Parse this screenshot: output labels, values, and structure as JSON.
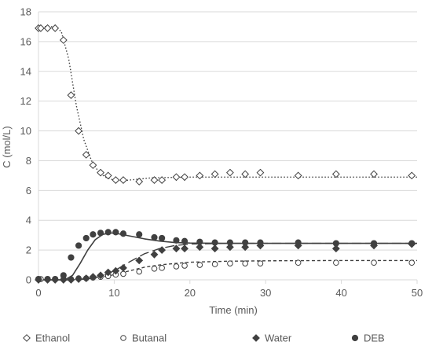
{
  "chart_data": {
    "type": "scatter",
    "xlabel": "Time (min)",
    "ylabel": "C (mol/L)",
    "xlim": [
      0,
      50
    ],
    "ylim": [
      0,
      18
    ],
    "x_ticks": [
      0,
      10,
      20,
      30,
      40,
      50
    ],
    "y_ticks": [
      0,
      2,
      4,
      6,
      8,
      10,
      12,
      14,
      16,
      18
    ],
    "grid": "horizontal",
    "legend_position": "bottom",
    "axis_color": "#d9d9d9",
    "text_color": "#595959",
    "series": [
      {
        "name": "Ethanol",
        "marker": "diamond-open",
        "color": "#404040",
        "points": [
          [
            0,
            16.9
          ],
          [
            0.3,
            16.9
          ],
          [
            1.2,
            16.9
          ],
          [
            2.2,
            16.9
          ],
          [
            3.3,
            16.1
          ],
          [
            4.3,
            12.4
          ],
          [
            5.3,
            10.0
          ],
          [
            6.3,
            8.4
          ],
          [
            7.2,
            7.7
          ],
          [
            8.2,
            7.2
          ],
          [
            9.2,
            7.0
          ],
          [
            10.2,
            6.7
          ],
          [
            11.2,
            6.7
          ],
          [
            13.3,
            6.6
          ],
          [
            15.3,
            6.7
          ],
          [
            16.3,
            6.7
          ],
          [
            18.2,
            6.9
          ],
          [
            19.3,
            6.9
          ],
          [
            21.3,
            7.0
          ],
          [
            23.3,
            7.1
          ],
          [
            25.3,
            7.2
          ],
          [
            27.3,
            7.1
          ],
          [
            29.3,
            7.2
          ],
          [
            34.3,
            7.0
          ],
          [
            39.3,
            7.1
          ],
          [
            44.3,
            7.1
          ],
          [
            49.3,
            7.0
          ]
        ]
      },
      {
        "name": "Butanal",
        "marker": "circle-open",
        "color": "#404040",
        "points": [
          [
            0,
            0.05
          ],
          [
            0.3,
            0.05
          ],
          [
            1.2,
            0.05
          ],
          [
            2.2,
            0.05
          ],
          [
            3.3,
            0.05
          ],
          [
            4.3,
            0.05
          ],
          [
            5.3,
            0.1
          ],
          [
            6.3,
            0.1
          ],
          [
            7.2,
            0.15
          ],
          [
            8.2,
            0.2
          ],
          [
            9.2,
            0.25
          ],
          [
            10.2,
            0.35
          ],
          [
            11.2,
            0.4
          ],
          [
            13.3,
            0.55
          ],
          [
            15.3,
            0.75
          ],
          [
            16.3,
            0.8
          ],
          [
            18.2,
            0.9
          ],
          [
            19.3,
            0.95
          ],
          [
            21.3,
            1.0
          ],
          [
            23.3,
            1.05
          ],
          [
            25.3,
            1.1
          ],
          [
            27.3,
            1.1
          ],
          [
            29.3,
            1.1
          ],
          [
            34.3,
            1.15
          ],
          [
            39.3,
            1.15
          ],
          [
            44.3,
            1.15
          ],
          [
            49.3,
            1.15
          ]
        ]
      },
      {
        "name": "Water",
        "marker": "diamond-filled",
        "color": "#404040",
        "points": [
          [
            0,
            0.0
          ],
          [
            1.2,
            0.0
          ],
          [
            2.2,
            0.0
          ],
          [
            3.3,
            0.0
          ],
          [
            4.3,
            0.0
          ],
          [
            5.3,
            0.05
          ],
          [
            6.3,
            0.1
          ],
          [
            7.2,
            0.2
          ],
          [
            8.2,
            0.3
          ],
          [
            9.2,
            0.5
          ],
          [
            10.2,
            0.6
          ],
          [
            11.2,
            0.8
          ],
          [
            13.3,
            1.3
          ],
          [
            15.3,
            1.7
          ],
          [
            16.3,
            2.0
          ],
          [
            18.2,
            2.1
          ],
          [
            19.3,
            2.1
          ],
          [
            21.3,
            2.2
          ],
          [
            23.3,
            2.1
          ],
          [
            25.3,
            2.2
          ],
          [
            27.3,
            2.2
          ],
          [
            29.3,
            2.3
          ],
          [
            34.3,
            2.3
          ],
          [
            39.3,
            2.1
          ],
          [
            44.3,
            2.3
          ],
          [
            49.3,
            2.4
          ]
        ]
      },
      {
        "name": "DEB",
        "marker": "circle-filled",
        "color": "#404040",
        "points": [
          [
            0,
            0.05
          ],
          [
            1.2,
            0.05
          ],
          [
            2.2,
            0.05
          ],
          [
            3.3,
            0.3
          ],
          [
            4.3,
            1.5
          ],
          [
            5.3,
            2.3
          ],
          [
            6.3,
            2.8
          ],
          [
            7.2,
            3.05
          ],
          [
            8.2,
            3.15
          ],
          [
            9.2,
            3.2
          ],
          [
            10.2,
            3.2
          ],
          [
            11.2,
            3.1
          ],
          [
            13.3,
            3.05
          ],
          [
            15.3,
            2.85
          ],
          [
            16.3,
            2.8
          ],
          [
            18.2,
            2.65
          ],
          [
            19.3,
            2.6
          ],
          [
            21.3,
            2.55
          ],
          [
            23.3,
            2.5
          ],
          [
            25.3,
            2.5
          ],
          [
            27.3,
            2.5
          ],
          [
            29.3,
            2.5
          ],
          [
            34.3,
            2.5
          ],
          [
            39.3,
            2.45
          ],
          [
            44.3,
            2.45
          ],
          [
            49.3,
            2.45
          ]
        ]
      }
    ],
    "fit_lines": [
      {
        "dash": "dotted",
        "points": [
          [
            0,
            17.0
          ],
          [
            2,
            17.0
          ],
          [
            3,
            16.7
          ],
          [
            4,
            14.8
          ],
          [
            5,
            11.7
          ],
          [
            6,
            9.4
          ],
          [
            7,
            8.0
          ],
          [
            8,
            7.2
          ],
          [
            9,
            6.85
          ],
          [
            10,
            6.7
          ],
          [
            11,
            6.65
          ],
          [
            13,
            6.75
          ],
          [
            15,
            6.85
          ],
          [
            20,
            6.9
          ],
          [
            30,
            6.9
          ],
          [
            40,
            6.9
          ],
          [
            50,
            6.9
          ]
        ]
      },
      {
        "dash": "short-dash",
        "points": [
          [
            0,
            0.0
          ],
          [
            4,
            0.0
          ],
          [
            6,
            0.05
          ],
          [
            8,
            0.15
          ],
          [
            10,
            0.35
          ],
          [
            12,
            0.6
          ],
          [
            14,
            0.85
          ],
          [
            16,
            1.0
          ],
          [
            18,
            1.1
          ],
          [
            20,
            1.18
          ],
          [
            25,
            1.25
          ],
          [
            30,
            1.28
          ],
          [
            40,
            1.3
          ],
          [
            50,
            1.3
          ]
        ]
      },
      {
        "dash": "long-dash",
        "points": [
          [
            0,
            0.0
          ],
          [
            4,
            0.0
          ],
          [
            6,
            0.05
          ],
          [
            8,
            0.2
          ],
          [
            10,
            0.6
          ],
          [
            12,
            1.2
          ],
          [
            14,
            1.75
          ],
          [
            16,
            2.1
          ],
          [
            18,
            2.3
          ],
          [
            20,
            2.4
          ],
          [
            25,
            2.45
          ],
          [
            30,
            2.45
          ],
          [
            40,
            2.45
          ],
          [
            50,
            2.45
          ]
        ]
      },
      {
        "dash": "solid",
        "points": [
          [
            0,
            0.0
          ],
          [
            3.5,
            0.0
          ],
          [
            4.5,
            0.3
          ],
          [
            5.5,
            1.1
          ],
          [
            6.5,
            2.0
          ],
          [
            7.5,
            2.7
          ],
          [
            8.5,
            3.05
          ],
          [
            9.5,
            3.15
          ],
          [
            10.5,
            3.1
          ],
          [
            12,
            2.95
          ],
          [
            14,
            2.75
          ],
          [
            16,
            2.6
          ],
          [
            18,
            2.5
          ],
          [
            20,
            2.47
          ],
          [
            25,
            2.45
          ],
          [
            30,
            2.45
          ],
          [
            40,
            2.45
          ],
          [
            50,
            2.45
          ]
        ]
      }
    ]
  }
}
